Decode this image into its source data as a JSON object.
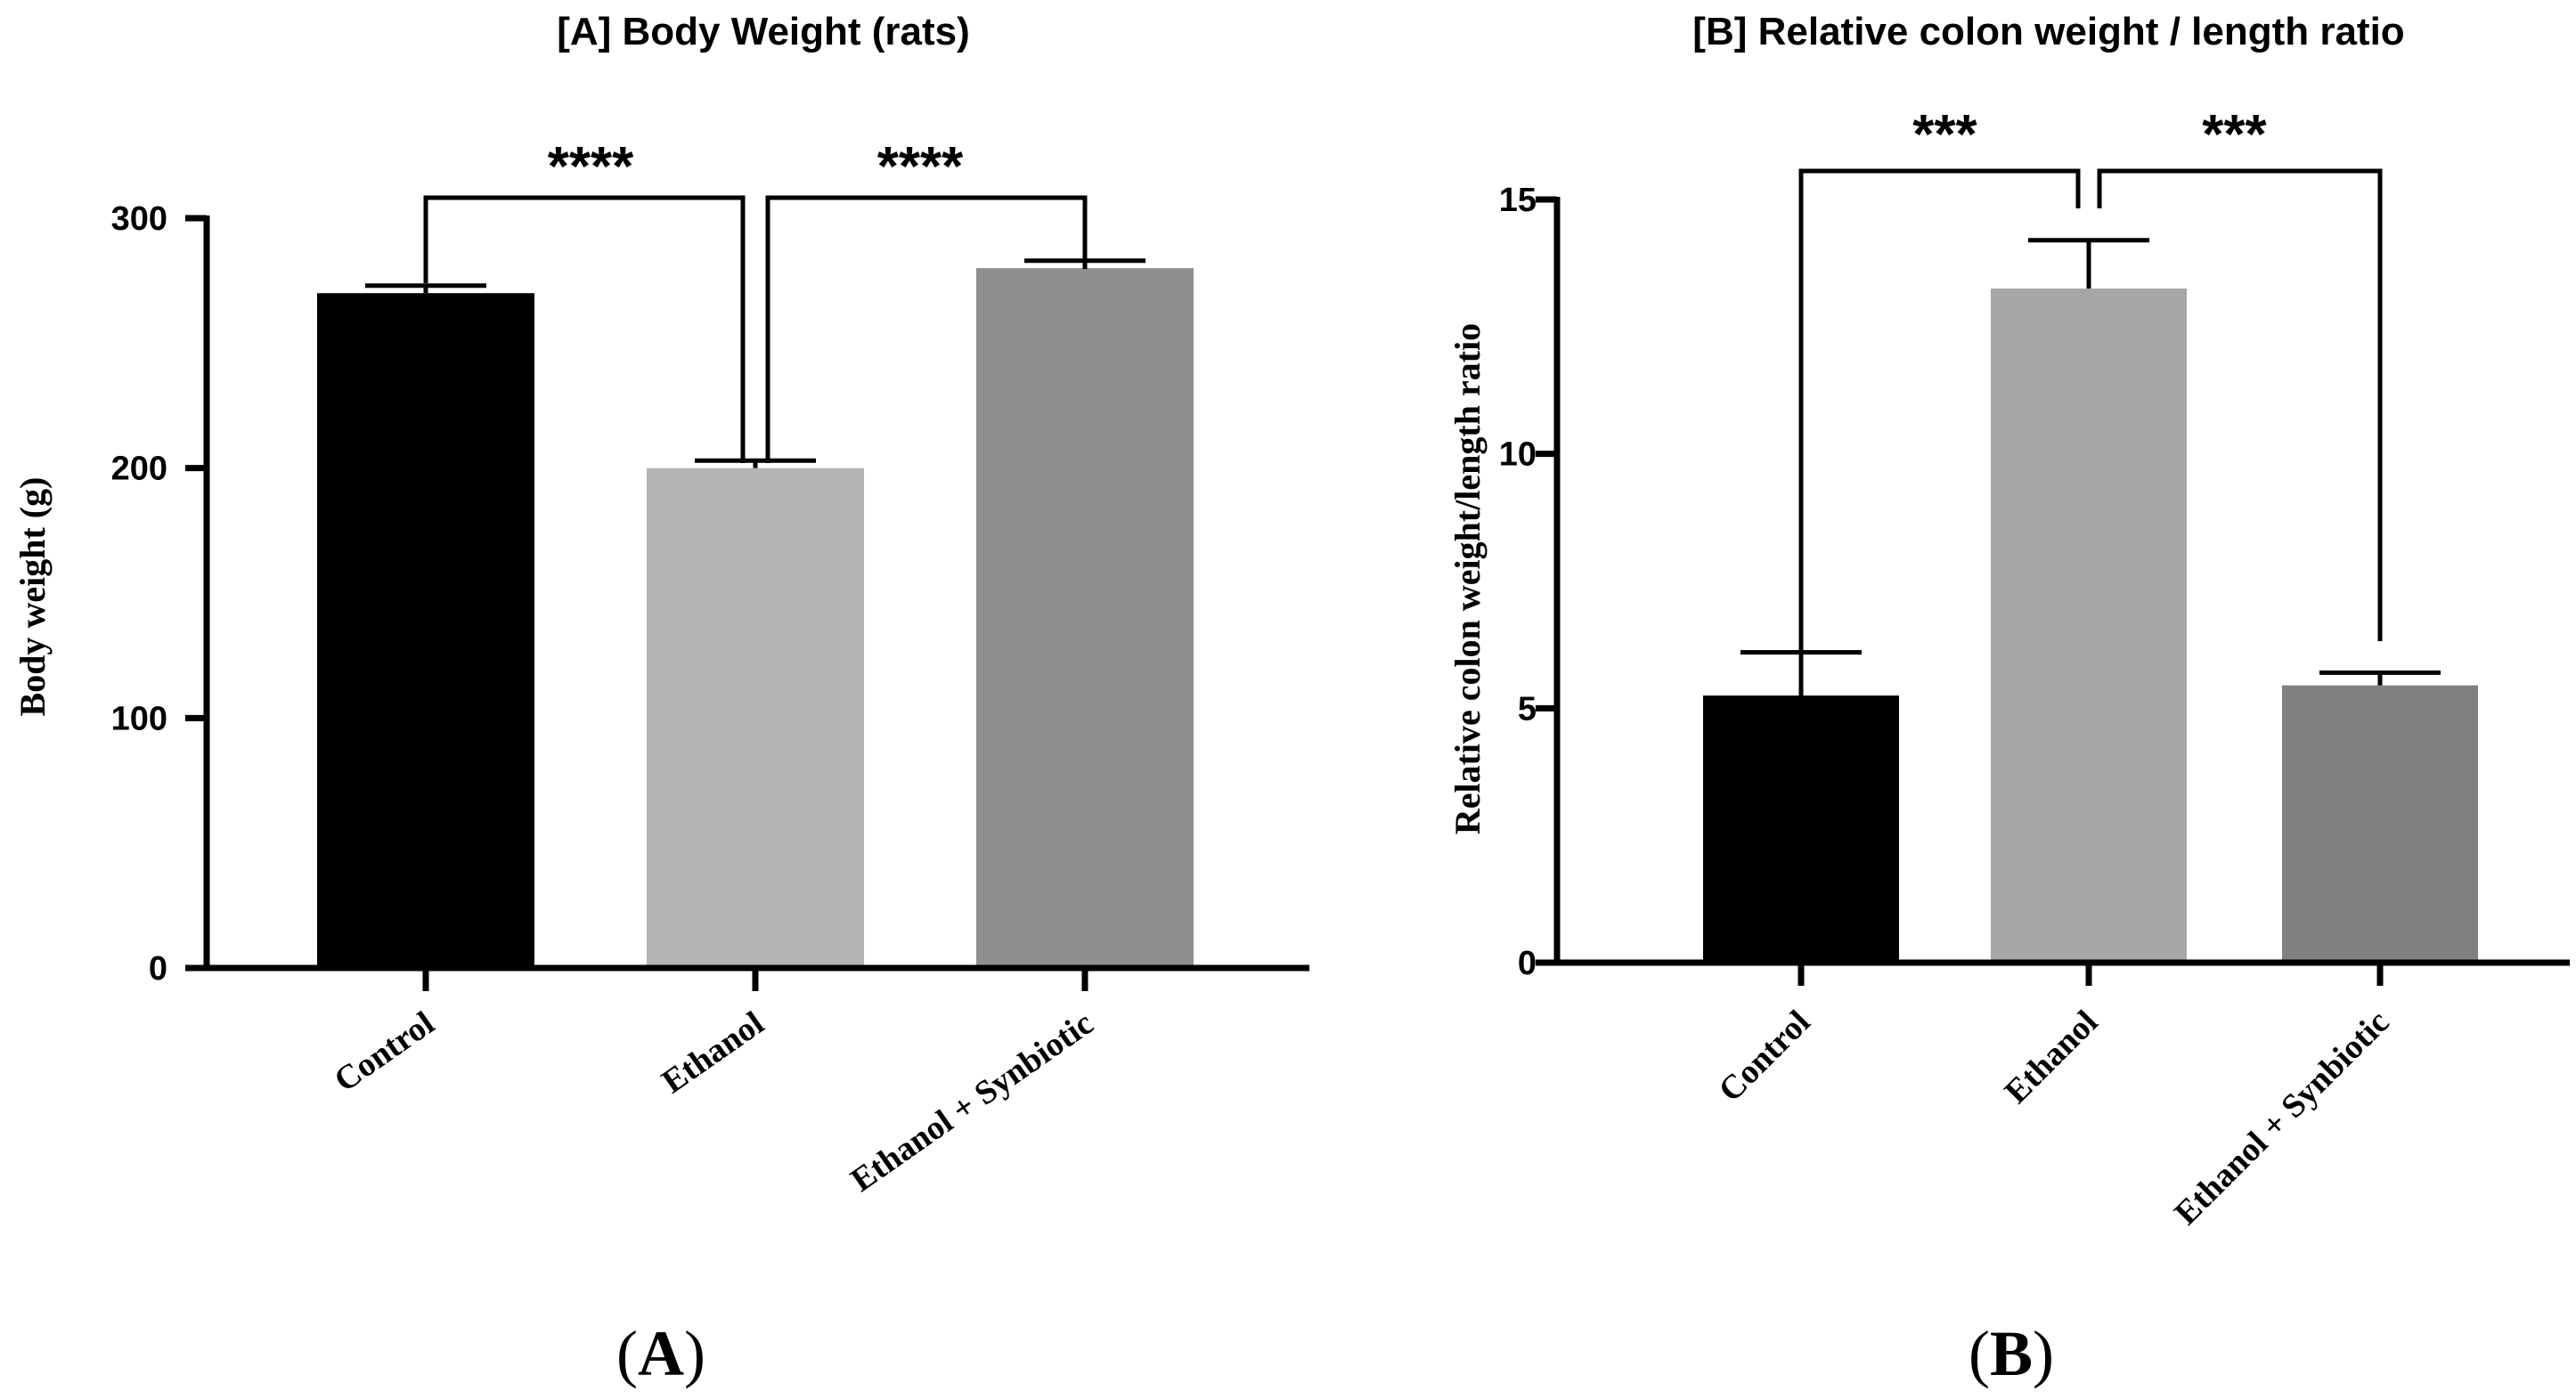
{
  "chart_data": [
    {
      "type": "bar",
      "title": "[A] Body Weight (rats)",
      "xlabel": "",
      "ylabel": "Body weight (g)",
      "ylim": [
        0,
        300
      ],
      "yticks": [
        "0",
        "100",
        "200",
        "300"
      ],
      "categories": [
        "Control",
        "Ethanol",
        "Ethanol + Synbiotic"
      ],
      "values": [
        270,
        200,
        280
      ],
      "errors": [
        3,
        3,
        3
      ],
      "colors": [
        "#000000",
        "#b5b5b5",
        "#8f8f8f"
      ],
      "significance": [
        {
          "from": "Control",
          "to": "Ethanol",
          "label": "****"
        },
        {
          "from": "Ethanol",
          "to": "Ethanol + Synbiotic",
          "label": "****"
        }
      ],
      "panel_label": {
        "open": "(",
        "letter": "A",
        "close": ")"
      }
    },
    {
      "type": "bar",
      "title": "[B] Relative colon weight / length ratio",
      "xlabel": "",
      "ylabel": "Relative colon weight/length ratio",
      "ylim": [
        0,
        15
      ],
      "yticks": [
        "0",
        "5",
        "10",
        "15"
      ],
      "categories": [
        "Control",
        "Ethanol",
        "Ethanol + Synbiotic"
      ],
      "values": [
        5.25,
        13.25,
        5.45
      ],
      "errors": [
        0.85,
        0.95,
        0.25
      ],
      "colors": [
        "#000000",
        "#a7a7aa",
        "#808080"
      ],
      "significance": [
        {
          "from": "Control",
          "to": "Ethanol",
          "label": "***"
        },
        {
          "from": "Ethanol",
          "to": "Ethanol + Synbiotic",
          "label": "***"
        }
      ],
      "panel_label": {
        "open": "(",
        "letter": "B",
        "close": ")"
      }
    }
  ]
}
